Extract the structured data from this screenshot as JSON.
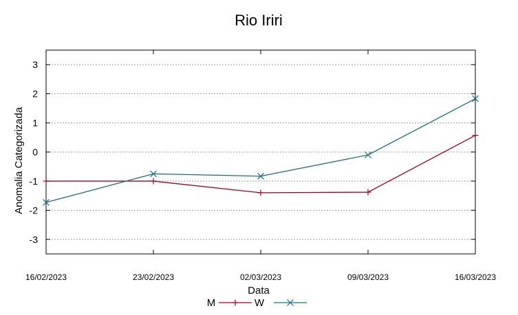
{
  "chart_data": {
    "type": "line",
    "title": "Rio Iriri",
    "xlabel": "Data",
    "ylabel": "Anomalia Categorizada",
    "x": [
      "16/02/2023",
      "23/02/2023",
      "02/03/2023",
      "09/03/2023",
      "16/03/2023"
    ],
    "xticks": [
      "16/02/2023",
      "23/02/2023",
      "02/03/2023",
      "09/03/2023",
      "16/03/2023"
    ],
    "yticks": [
      "3",
      "2",
      "1",
      "0",
      "-1",
      "-2",
      "-3"
    ],
    "ylim": [
      -3.5,
      3.5
    ],
    "grid": true,
    "legend_position": "bottom",
    "series": [
      {
        "name": "M",
        "color": "#a0001e",
        "marker": "plus",
        "values": [
          -1.0,
          -1.0,
          -1.4,
          -1.38,
          0.57
        ]
      },
      {
        "name": "W",
        "color": "#1a7080",
        "marker": "cross",
        "values": [
          -1.73,
          -0.75,
          -0.83,
          -0.1,
          1.83
        ]
      }
    ]
  }
}
